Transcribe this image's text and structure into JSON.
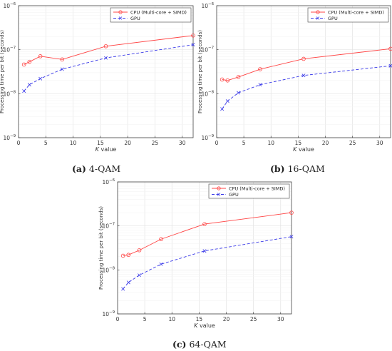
{
  "chart_data": [
    {
      "type": "line",
      "panel": "(a)",
      "caption_label": "(a)",
      "caption_text": "4-QAM",
      "xlabel_italic": "K",
      "xlabel_rest": "value",
      "ylabel": "Processing time per bit (seconds)",
      "xlim": [
        0,
        32
      ],
      "ylim": [
        1e-09,
        1e-06
      ],
      "yscale": "log",
      "xticks": [
        0,
        5,
        10,
        15,
        20,
        25,
        30
      ],
      "ytick_exponents": [
        -9,
        -8,
        -7,
        -6
      ],
      "grid": true,
      "legend_position": "top-right",
      "x": [
        1,
        2,
        4,
        8,
        16,
        32
      ],
      "series": [
        {
          "name": "CPU (Multi-core + SIMD)",
          "color": "#ff4444",
          "marker": "circle",
          "dash": "solid",
          "values": [
            4.6e-08,
            5.3e-08,
            7.1e-08,
            6e-08,
            1.2e-07,
            2.1e-07
          ]
        },
        {
          "name": "GPU",
          "color": "#3a3ae8",
          "marker": "x",
          "dash": "dashed",
          "values": [
            1.15e-08,
            1.6e-08,
            2.2e-08,
            3.6e-08,
            6.5e-08,
            1.3e-07
          ]
        }
      ]
    },
    {
      "type": "line",
      "panel": "(b)",
      "caption_label": "(b)",
      "caption_text": "16-QAM",
      "xlabel_italic": "K",
      "xlabel_rest": "value",
      "ylabel": "Processing time per bit (seconds)",
      "xlim": [
        0,
        32
      ],
      "ylim": [
        1e-09,
        1e-06
      ],
      "yscale": "log",
      "xticks": [
        0,
        5,
        10,
        15,
        20,
        25,
        30
      ],
      "ytick_exponents": [
        -9,
        -8,
        -7,
        -6
      ],
      "grid": true,
      "legend_position": "top-right",
      "x": [
        1,
        2,
        4,
        8,
        16,
        32
      ],
      "series": [
        {
          "name": "CPU (Multi-core + SIMD)",
          "color": "#ff4444",
          "marker": "circle",
          "dash": "solid",
          "values": [
            2.1e-08,
            2e-08,
            2.4e-08,
            3.6e-08,
            6.2e-08,
            1.05e-07
          ]
        },
        {
          "name": "GPU",
          "color": "#3a3ae8",
          "marker": "x",
          "dash": "dashed",
          "values": [
            4.5e-09,
            6.8e-09,
            1.05e-08,
            1.6e-08,
            2.6e-08,
            4.3e-08
          ]
        }
      ]
    },
    {
      "type": "line",
      "panel": "(c)",
      "caption_label": "(c)",
      "caption_text": "64-QAM",
      "xlabel_italic": "K",
      "xlabel_rest": "value",
      "ylabel": "Processing time per bit (seconds)",
      "xlim": [
        0,
        32
      ],
      "ylim": [
        1e-09,
        1e-06
      ],
      "yscale": "log",
      "xticks": [
        0,
        5,
        10,
        15,
        20,
        25,
        30
      ],
      "ytick_exponents": [
        -9,
        -8,
        -7,
        -6
      ],
      "grid": true,
      "legend_position": "top-right",
      "x": [
        1,
        2,
        4,
        8,
        16,
        32
      ],
      "series": [
        {
          "name": "CPU (Multi-core + SIMD)",
          "color": "#ff4444",
          "marker": "circle",
          "dash": "solid",
          "values": [
            2.1e-08,
            2.2e-08,
            2.8e-08,
            5e-08,
            1.1e-07,
            2e-07
          ]
        },
        {
          "name": "GPU",
          "color": "#3a3ae8",
          "marker": "x",
          "dash": "dashed",
          "values": [
            3.7e-09,
            5.2e-09,
            7.6e-09,
            1.35e-08,
            2.7e-08,
            5.7e-08
          ]
        }
      ]
    }
  ]
}
